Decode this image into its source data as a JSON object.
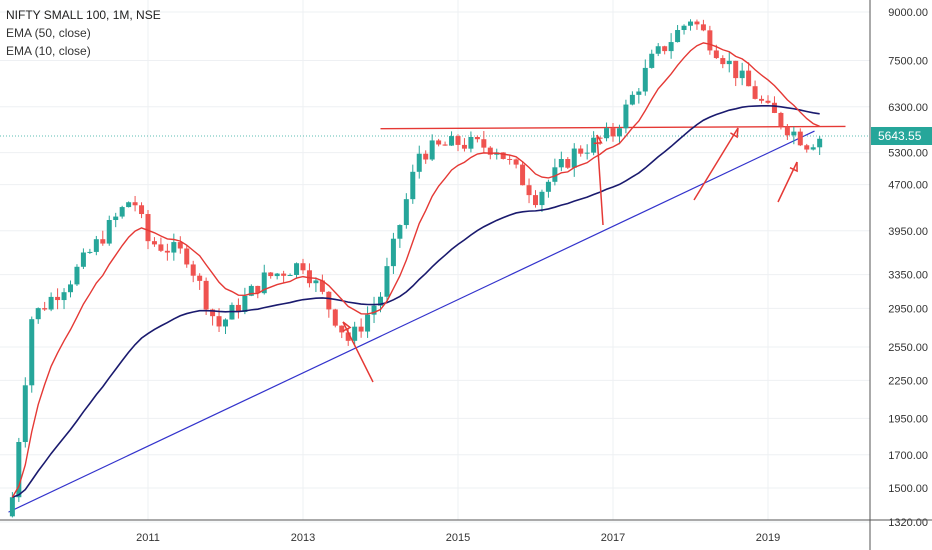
{
  "legend": {
    "title": "NIFTY SMALL 100, 1M, NSE",
    "line1": "EMA (50, close)",
    "line2": "EMA (10, close)"
  },
  "colors": {
    "up": "#26a69a",
    "down": "#ef5350",
    "ema50": "#1a1a6e",
    "ema10": "#e53935",
    "trendline": "#3333cc",
    "resistance": "#e53935",
    "arrows": "#e53935",
    "price_tag": "#26a69a",
    "grid": "#eef0f3"
  },
  "chart_data": {
    "type": "candlestick",
    "title": "NIFTY SMALL 100, 1M, NSE",
    "x_tick_labels": [
      "2011",
      "2013",
      "2015",
      "2017",
      "2019"
    ],
    "y_tick_labels": [
      "9000.00",
      "7500.00",
      "6300.00",
      "5300.00",
      "4700.00",
      "3950.00",
      "3350.00",
      "2950.00",
      "2550.00",
      "2250.00",
      "1950.00",
      "1700.00",
      "1500.00",
      "1320.00"
    ],
    "y_scale": "log",
    "last_price": "5643.55",
    "series": [
      {
        "name": "EMA (50, close)"
      },
      {
        "name": "EMA (10, close)"
      }
    ],
    "ohlc_anchors_year_close": [
      [
        2009.25,
        1450
      ],
      [
        2009.5,
        2850
      ],
      [
        2010.0,
        3300
      ],
      [
        2010.8,
        4500
      ],
      [
        2011.0,
        3800
      ],
      [
        2011.5,
        3600
      ],
      [
        2011.9,
        2750
      ],
      [
        2012.5,
        3300
      ],
      [
        2013.0,
        3500
      ],
      [
        2013.6,
        2600
      ],
      [
        2014.0,
        3100
      ],
      [
        2014.5,
        5300
      ],
      [
        2015.0,
        5500
      ],
      [
        2015.5,
        5400
      ],
      [
        2016.0,
        4500
      ],
      [
        2016.5,
        5300
      ],
      [
        2017.0,
        5700
      ],
      [
        2017.5,
        7500
      ],
      [
        2018.0,
        8800
      ],
      [
        2018.5,
        7400
      ],
      [
        2019.0,
        6200
      ],
      [
        2019.5,
        5500
      ],
      [
        2019.7,
        5643.55
      ]
    ],
    "grid": true
  }
}
